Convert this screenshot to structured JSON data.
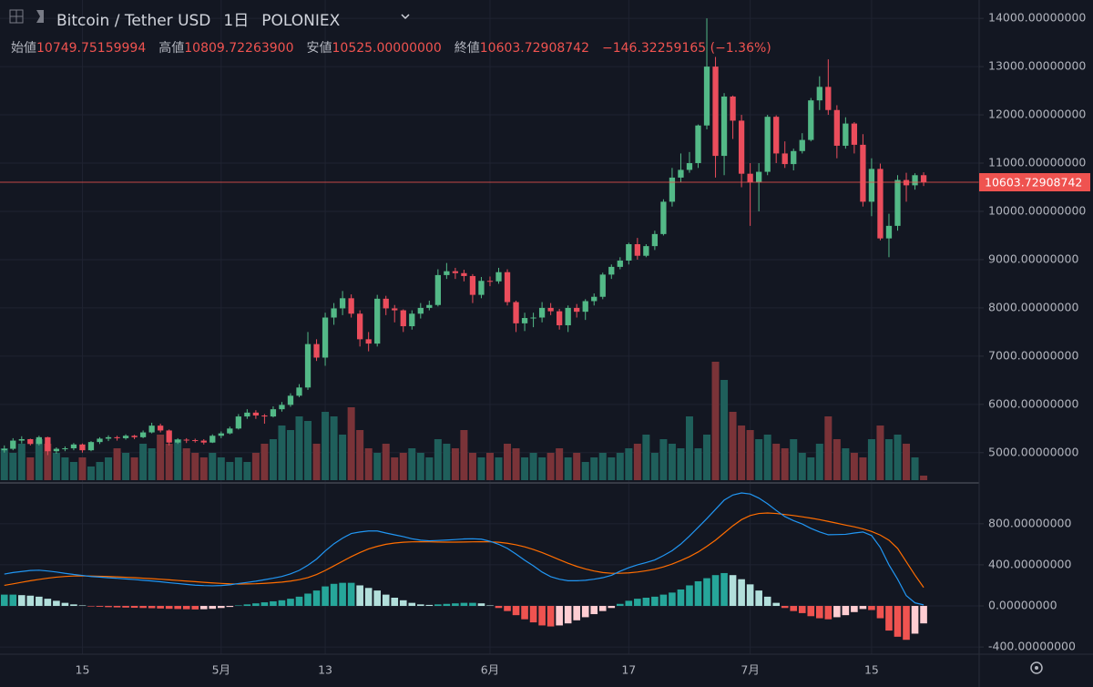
{
  "chart_data": {
    "type": "candlestick",
    "title": "Bitcoin / Tether USD",
    "interval": "1日",
    "exchange": "POLONIEX",
    "header": {
      "labels": [
        "始値",
        "高値",
        "安値",
        "終値"
      ],
      "values": [
        "10749.75159994",
        "10809.72263900",
        "10525.00000000",
        "10603.72908742"
      ],
      "change": "−146.32259165 (−1.36%)"
    },
    "xlim": [
      -0.5,
      112.4
    ],
    "xticks": [
      {
        "value": 9,
        "label": "15"
      },
      {
        "value": 25,
        "label": "5月"
      },
      {
        "value": 37,
        "label": "13"
      },
      {
        "value": 56,
        "label": "6月"
      },
      {
        "value": 72,
        "label": "17"
      },
      {
        "value": 86,
        "label": "7月"
      },
      {
        "value": 100,
        "label": "15"
      }
    ],
    "ylim": [
      4430,
      14380
    ],
    "yticks": [
      {
        "value": 5000,
        "label": "5000.00000000"
      },
      {
        "value": 6000,
        "label": "6000.00000000"
      },
      {
        "value": 7000,
        "label": "7000.00000000"
      },
      {
        "value": 8000,
        "label": "8000.00000000"
      },
      {
        "value": 9000,
        "label": "9000.00000000"
      },
      {
        "value": 10000,
        "label": "10000.00000000"
      },
      {
        "value": 11000,
        "label": "11000.00000000"
      },
      {
        "value": 12000,
        "label": "12000.00000000"
      },
      {
        "value": 13000,
        "label": "13000.00000000"
      },
      {
        "value": 14000,
        "label": "14000.00000000"
      }
    ],
    "grid": true,
    "up_color": "#53b987",
    "down_color": "#eb4d5c",
    "volume_up_color": "#1f5f5b",
    "volume_down_color": "#7a3338",
    "open": [
      5050,
      5080,
      5250,
      5280,
      5180,
      5320,
      5030,
      5080,
      5090,
      5170,
      5050,
      5220,
      5290,
      5320,
      5300,
      5350,
      5320,
      5420,
      5560,
      5460,
      5210,
      5270,
      5260,
      5250,
      5210,
      5350,
      5400,
      5500,
      5750,
      5830,
      5770,
      5750,
      5900,
      5990,
      6180,
      6350,
      7250,
      6970,
      7800,
      7990,
      8200,
      7880,
      7350,
      7260,
      8190,
      7990,
      7950,
      7620,
      7880,
      8000,
      8060,
      8680,
      8760,
      8720,
      8660,
      8270,
      8560,
      8550,
      8740,
      8120,
      7680,
      7790,
      7800,
      8000,
      7930,
      7640,
      8000,
      7920,
      8140,
      8230,
      8690,
      8850,
      8980,
      9320,
      9080,
      9280,
      9530,
      10200,
      10700,
      10860,
      11000,
      11780,
      13000,
      11150,
      12380,
      11880,
      10780,
      10600,
      10820,
      11960,
      11200,
      10980,
      11250,
      11480,
      12300,
      12580,
      12100,
      11360,
      11820,
      11380,
      10200,
      10880,
      9440,
      9700,
      10650,
      10540,
      10749.75159994
    ],
    "high": [
      5150,
      5300,
      5340,
      5290,
      5350,
      5330,
      5110,
      5130,
      5200,
      5190,
      5240,
      5320,
      5360,
      5350,
      5380,
      5370,
      5460,
      5620,
      5600,
      5480,
      5300,
      5300,
      5290,
      5280,
      5380,
      5440,
      5540,
      5800,
      5900,
      5880,
      5800,
      5960,
      6050,
      6230,
      6420,
      7500,
      7350,
      7900,
      8100,
      8350,
      8280,
      7950,
      7500,
      8270,
      8250,
      8060,
      7970,
      7950,
      8100,
      8150,
      8800,
      8930,
      8830,
      8790,
      8700,
      8640,
      8650,
      8830,
      8800,
      8150,
      7900,
      7900,
      8120,
      8100,
      7980,
      8050,
      8080,
      8180,
      8300,
      8730,
      8900,
      9050,
      9350,
      9450,
      9320,
      9600,
      10250,
      10900,
      11200,
      11230,
      11800,
      14000,
      13200,
      12450,
      12400,
      12000,
      11000,
      11000,
      12000,
      11990,
      11450,
      11300,
      11620,
      12350,
      12800,
      13150,
      12200,
      11950,
      11850,
      11600,
      11100,
      10990,
      9950,
      10750,
      10800,
      10790,
      10809.722639
    ],
    "low": [
      5000,
      5050,
      5190,
      5150,
      5150,
      4950,
      4980,
      5030,
      5050,
      5000,
      5030,
      5180,
      5240,
      5250,
      5270,
      5280,
      5300,
      5400,
      5420,
      5150,
      5180,
      5200,
      5210,
      5170,
      5200,
      5300,
      5380,
      5480,
      5700,
      5700,
      5600,
      5730,
      5850,
      5950,
      6150,
      6300,
      6900,
      6800,
      7650,
      7850,
      7800,
      7200,
      7100,
      7200,
      7850,
      7700,
      7500,
      7550,
      7780,
      7950,
      8030,
      8600,
      8600,
      8550,
      8100,
      8200,
      8450,
      8500,
      8050,
      7500,
      7520,
      7600,
      7700,
      7850,
      7550,
      7500,
      7800,
      7750,
      8050,
      8180,
      8600,
      8800,
      8900,
      9000,
      9050,
      9200,
      9500,
      10100,
      10600,
      10800,
      10900,
      11700,
      10700,
      10750,
      11500,
      10500,
      9700,
      10000,
      10750,
      11000,
      10900,
      10850,
      11200,
      11450,
      12100,
      12000,
      11100,
      11300,
      11200,
      10100,
      9900,
      9400,
      9050,
      9600,
      10200,
      10450,
      10525
    ],
    "close": [
      5080,
      5250,
      5280,
      5180,
      5320,
      5030,
      5080,
      5090,
      5170,
      5050,
      5220,
      5290,
      5320,
      5300,
      5350,
      5320,
      5420,
      5560,
      5460,
      5210,
      5270,
      5260,
      5250,
      5210,
      5350,
      5400,
      5500,
      5750,
      5830,
      5770,
      5750,
      5900,
      5990,
      6180,
      6350,
      7250,
      6970,
      7800,
      7990,
      8200,
      7880,
      7350,
      7260,
      8190,
      7990,
      7950,
      7620,
      7880,
      8000,
      8060,
      8680,
      8760,
      8720,
      8660,
      8270,
      8560,
      8550,
      8740,
      8120,
      7680,
      7790,
      7800,
      8000,
      7930,
      7640,
      8000,
      7920,
      8140,
      8230,
      8690,
      8850,
      8980,
      9320,
      9080,
      9280,
      9530,
      10200,
      10700,
      10860,
      11000,
      11780,
      13000,
      11150,
      12380,
      11880,
      10780,
      10600,
      10820,
      11960,
      11200,
      10980,
      11250,
      11480,
      12300,
      12580,
      12100,
      11360,
      11820,
      11380,
      10200,
      10880,
      9440,
      9700,
      10650,
      10540,
      10749.75159994,
      10603.72908742
    ],
    "volume": [
      35,
      30,
      40,
      25,
      45,
      40,
      30,
      25,
      20,
      25,
      15,
      20,
      25,
      35,
      30,
      25,
      40,
      35,
      50,
      40,
      45,
      35,
      30,
      25,
      30,
      25,
      20,
      25,
      20,
      30,
      40,
      45,
      60,
      55,
      70,
      65,
      40,
      75,
      70,
      50,
      80,
      55,
      35,
      30,
      40,
      25,
      30,
      35,
      30,
      25,
      45,
      40,
      35,
      55,
      30,
      25,
      30,
      25,
      40,
      35,
      25,
      30,
      25,
      30,
      35,
      25,
      30,
      20,
      25,
      30,
      25,
      30,
      35,
      40,
      50,
      30,
      45,
      40,
      35,
      70,
      35,
      50,
      130,
      110,
      75,
      60,
      55,
      45,
      50,
      40,
      35,
      45,
      30,
      25,
      40,
      70,
      45,
      35,
      30,
      25,
      45,
      60,
      45,
      50,
      40,
      25,
      5
    ],
    "price_line_color": "#ef5350",
    "macd": {
      "ylim": [
        -470,
        1180
      ],
      "yticks": [
        {
          "value": -400,
          "label": "-400.00000000"
        },
        {
          "value": 0,
          "label": "0.00000000"
        },
        {
          "value": 400,
          "label": "400.00000000"
        },
        {
          "value": 800,
          "label": "800.00000000"
        }
      ],
      "macd_color": "#2196f3",
      "signal_color": "#ff6d00",
      "hist_colors": [
        "#26a69a",
        "#b2dfdb",
        "#ef5350",
        "#ffcdd2"
      ],
      "macd": [
        310,
        325,
        335,
        345,
        348,
        340,
        330,
        317,
        306,
        297,
        286,
        281,
        274,
        269,
        263,
        257,
        250,
        243,
        235,
        226,
        218,
        210,
        202,
        198,
        196,
        199,
        205,
        218,
        229,
        241,
        255,
        270,
        287,
        312,
        346,
        396,
        456,
        535,
        605,
        660,
        705,
        720,
        730,
        730,
        710,
        692,
        675,
        654,
        640,
        634,
        637,
        641,
        646,
        652,
        654,
        650,
        629,
        600,
        560,
        505,
        445,
        390,
        330,
        285,
        260,
        245,
        245,
        250,
        260,
        275,
        298,
        338,
        372,
        400,
        422,
        448,
        490,
        538,
        602,
        680,
        765,
        850,
        940,
        1030,
        1080,
        1100,
        1090,
        1050,
        995,
        930,
        870,
        830,
        798,
        755,
        720,
        693,
        695,
        697,
        710,
        720,
        685,
        570,
        400,
        260,
        100,
        30,
        10
      ],
      "signal": [
        200,
        215,
        230,
        245,
        258,
        270,
        280,
        287,
        291,
        292,
        291,
        289,
        286,
        283,
        279,
        275,
        270,
        265,
        260,
        254,
        248,
        242,
        236,
        230,
        224,
        219,
        215,
        213,
        214,
        216,
        220,
        225,
        232,
        242,
        256,
        276,
        306,
        345,
        390,
        435,
        480,
        520,
        555,
        580,
        600,
        612,
        620,
        624,
        625,
        624,
        622,
        621,
        621,
        622,
        624,
        625,
        624,
        620,
        610,
        595,
        575,
        550,
        520,
        485,
        450,
        415,
        385,
        360,
        340,
        325,
        318,
        318,
        322,
        330,
        342,
        358,
        380,
        408,
        442,
        480,
        525,
        580,
        640,
        710,
        780,
        840,
        880,
        900,
        905,
        900,
        890,
        880,
        868,
        855,
        840,
        823,
        805,
        787,
        770,
        750,
        725,
        690,
        640,
        560,
        430,
        300,
        180
      ],
      "histogram": [
        110,
        110,
        105,
        100,
        90,
        70,
        50,
        30,
        15,
        5,
        -5,
        -8,
        -12,
        -14,
        -16,
        -18,
        -20,
        -22,
        -25,
        -28,
        -30,
        -32,
        -34,
        -32,
        -28,
        -20,
        -10,
        5,
        15,
        25,
        35,
        45,
        55,
        70,
        90,
        120,
        150,
        190,
        215,
        225,
        225,
        200,
        175,
        150,
        110,
        80,
        55,
        30,
        15,
        10,
        15,
        20,
        25,
        30,
        30,
        25,
        5,
        -20,
        -50,
        -90,
        -130,
        -160,
        -190,
        -200,
        -190,
        -170,
        -140,
        -110,
        -80,
        -50,
        -20,
        20,
        50,
        70,
        80,
        90,
        110,
        130,
        160,
        200,
        240,
        270,
        300,
        320,
        300,
        260,
        210,
        150,
        90,
        30,
        -20,
        -50,
        -70,
        -100,
        -120,
        -130,
        -110,
        -90,
        -60,
        -30,
        -40,
        -120,
        -240,
        -300,
        -330,
        -270,
        -170
      ]
    }
  }
}
